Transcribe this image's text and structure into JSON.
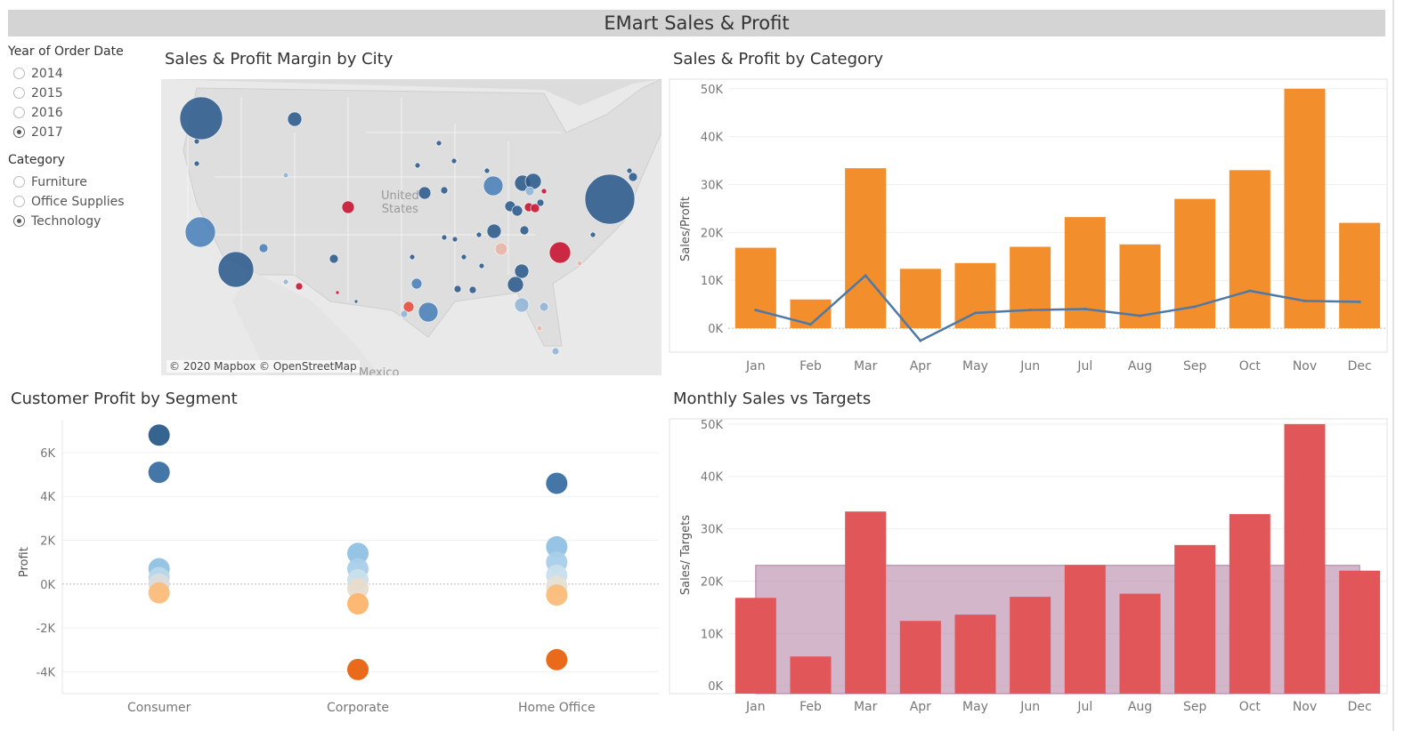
{
  "dashboard_title": "EMart Sales & Profit",
  "filters": {
    "year": {
      "title": "Year of Order Date",
      "options": [
        "2014",
        "2015",
        "2016",
        "2017"
      ],
      "selected": "2017"
    },
    "category": {
      "title": "Category",
      "options": [
        "Furniture",
        "Office Supplies",
        "Technology"
      ],
      "selected": "Technology"
    }
  },
  "map": {
    "title": "Sales & Profit Margin by City",
    "country_label_line1": "United",
    "country_label_line2": "States",
    "neighbor_label": "Mexico",
    "credit": "© 2020 Mapbox © OpenStreetMap",
    "colors": {
      "high_margin": "#2c5a8c",
      "mid_margin": "#8fb4d6",
      "neutral": "#e8c8c0",
      "low_margin": "#c8102e"
    }
  },
  "chart_data": [
    {
      "type": "bar",
      "title": "Sales & Profit by Category",
      "ylabel": "Sales/Profit",
      "ylim": [
        -5000,
        52000
      ],
      "yticks": [
        0,
        10000,
        20000,
        30000,
        40000,
        50000
      ],
      "ytick_labels": [
        "0K",
        "10K",
        "20K",
        "30K",
        "40K",
        "50K"
      ],
      "categories": [
        "Jan",
        "Feb",
        "Mar",
        "Apr",
        "May",
        "Jun",
        "Jul",
        "Aug",
        "Sep",
        "Oct",
        "Nov",
        "Dec"
      ],
      "series": [
        {
          "kind": "bar",
          "color": "#f28e2b",
          "values": [
            16800,
            6000,
            33400,
            12400,
            13600,
            17000,
            23200,
            17500,
            27000,
            33000,
            50000,
            22000
          ]
        },
        {
          "kind": "line",
          "color": "#4e79a7",
          "values": [
            3800,
            800,
            11000,
            -2600,
            3200,
            3800,
            4000,
            2600,
            4500,
            7800,
            5700,
            5500
          ]
        }
      ],
      "grid": true
    },
    {
      "type": "scatter",
      "title": "Customer Profit by Segment",
      "ylabel": "Profit",
      "ylim": [
        -5000,
        7500
      ],
      "yticks": [
        -4000,
        -2000,
        0,
        2000,
        4000,
        6000
      ],
      "ytick_labels": [
        "-4K",
        "-2K",
        "0K",
        "2K",
        "4K",
        "6K"
      ],
      "categories": [
        "Consumer",
        "Corporate",
        "Home Office"
      ],
      "points": [
        {
          "x": "Consumer",
          "y": 6800,
          "color": "#2b5c8a"
        },
        {
          "x": "Consumer",
          "y": 5100,
          "color": "#3b6fa3"
        },
        {
          "x": "Consumer",
          "y": 700,
          "color": "#8fc1e3"
        },
        {
          "x": "Consumer",
          "y": 300,
          "color": "#b8d8ec"
        },
        {
          "x": "Consumer",
          "y": 0,
          "color": "#dcdcdc"
        },
        {
          "x": "Consumer",
          "y": -400,
          "color": "#fbbd7a"
        },
        {
          "x": "Corporate",
          "y": 1400,
          "color": "#8fc1e3"
        },
        {
          "x": "Corporate",
          "y": 700,
          "color": "#a9cfe9"
        },
        {
          "x": "Corporate",
          "y": 200,
          "color": "#c9dfec"
        },
        {
          "x": "Corporate",
          "y": -200,
          "color": "#e8dccd"
        },
        {
          "x": "Corporate",
          "y": -900,
          "color": "#fdb56c"
        },
        {
          "x": "Corporate",
          "y": -3900,
          "color": "#e8620f"
        },
        {
          "x": "Home Office",
          "y": 4600,
          "color": "#3b6fa3"
        },
        {
          "x": "Home Office",
          "y": 1700,
          "color": "#8fc1e3"
        },
        {
          "x": "Home Office",
          "y": 1000,
          "color": "#a9cfe9"
        },
        {
          "x": "Home Office",
          "y": 400,
          "color": "#c9dfec"
        },
        {
          "x": "Home Office",
          "y": -100,
          "color": "#e5e0d6"
        },
        {
          "x": "Home Office",
          "y": -500,
          "color": "#fbbd7a"
        },
        {
          "x": "Home Office",
          "y": -3450,
          "color": "#e8620f"
        }
      ],
      "grid": true
    },
    {
      "type": "bar",
      "title": "Monthly Sales vs Targets",
      "ylabel": "Sales/ Targets",
      "ylim": [
        -1500,
        51000
      ],
      "yticks": [
        0,
        10000,
        20000,
        30000,
        40000,
        50000
      ],
      "ytick_labels": [
        "0K",
        "10K",
        "20K",
        "30K",
        "40K",
        "50K"
      ],
      "categories": [
        "Jan",
        "Feb",
        "Mar",
        "Apr",
        "May",
        "Jun",
        "Jul",
        "Aug",
        "Sep",
        "Oct",
        "Nov",
        "Dec"
      ],
      "series": [
        {
          "kind": "bar",
          "color": "#e15759",
          "values": [
            16800,
            5600,
            33300,
            12400,
            13600,
            17000,
            23100,
            17600,
            26900,
            32800,
            50000,
            22000
          ]
        },
        {
          "kind": "target_area",
          "color": "#b07aa1",
          "values": [
            23000,
            23000,
            23000,
            23000,
            23000,
            23000,
            23000,
            23000,
            23000,
            23000,
            23000,
            23000
          ]
        }
      ],
      "grid": true
    }
  ]
}
